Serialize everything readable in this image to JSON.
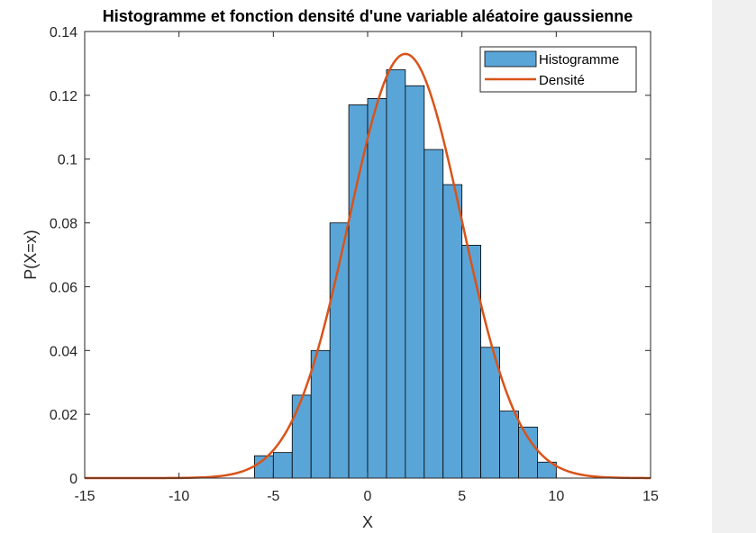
{
  "chart_data": {
    "type": "bar",
    "title": "Histogramme et fonction densité d'une variable aléatoire gaussienne",
    "xlabel": "X",
    "ylabel": "P(X=x)",
    "xlim": [
      -15,
      15
    ],
    "ylim": [
      0,
      0.14
    ],
    "xticks": [
      -15,
      -10,
      -5,
      0,
      5,
      10,
      15
    ],
    "xtick_labels": [
      "-15",
      "-10",
      "-5",
      "0",
      "5",
      "10",
      "15"
    ],
    "yticks": [
      0,
      0.02,
      0.04,
      0.06,
      0.08,
      0.1,
      0.12,
      0.14
    ],
    "ytick_labels": [
      "0",
      "0.02",
      "0.04",
      "0.06",
      "0.08",
      "0.1",
      "0.12",
      "0.14"
    ],
    "grid": false,
    "legend_position": "top-right",
    "series": [
      {
        "name": "Histogramme",
        "type": "bar",
        "color": "#5aa5d8",
        "bin_edges": [
          -6.0,
          -5.0,
          -4.0,
          -3.0,
          -2.0,
          -1.0,
          0.0,
          1.0,
          2.0,
          3.0,
          4.0,
          5.0,
          6.0,
          7.0,
          8.0,
          9.0,
          10.0
        ],
        "values": [
          0.007,
          0.008,
          0.026,
          0.04,
          0.08,
          0.117,
          0.119,
          0.128,
          0.123,
          0.103,
          0.092,
          0.073,
          0.041,
          0.021,
          0.016,
          0.005
        ]
      },
      {
        "name": "Densité",
        "type": "line",
        "color": "#d95319",
        "distribution": "normal",
        "mean": 2,
        "std": 3
      }
    ]
  }
}
